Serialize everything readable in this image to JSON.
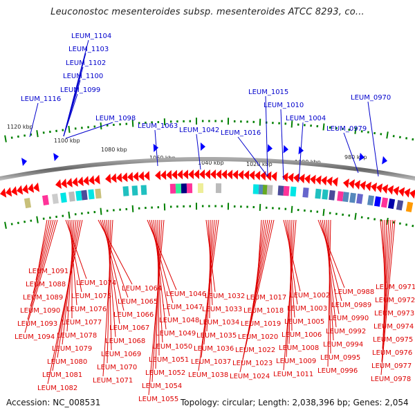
{
  "title": "Leuconostoc mesenteroides subsp. mesenteroides ATCC 8293, co...",
  "footer": {
    "accession": "Accession: NC_008531",
    "topology": "Topology: circular; Length: 2,038,396 bp; Genes: 2,054"
  },
  "colors": {
    "forward_gene": "#0000ff",
    "reverse_gene": "#ff0000",
    "forward_label": "#0000cc",
    "reverse_label": "#dd0000",
    "tick": "#008000",
    "backbone": "#888888"
  },
  "kbp_ticks": [
    "1120 kbp",
    "1100 kbp",
    "1080 kbp",
    "1060 kbp",
    "1040 kbp",
    "1020 kbp",
    "1000 kbp",
    "980 kbp"
  ],
  "forward_labels": [
    "LEUM_1104",
    "LEUM_1103",
    "LEUM_1102",
    "LEUM_1100",
    "LEUM_1099",
    "LEUM_1116",
    "LEUM_1098",
    "LEUM_1063",
    "LEUM_1042",
    "LEUM_1016",
    "LEUM_1015",
    "LEUM_1010",
    "LEUM_1004",
    "LEUM_0979",
    "LEUM_0970"
  ],
  "reverse_labels": [
    "LEUM_1091",
    "LEUM_1088",
    "LEUM_1089",
    "LEUM_1090",
    "LEUM_1093",
    "LEUM_1094",
    "LEUM_1074",
    "LEUM_1075",
    "LEUM_1076",
    "LEUM_1077",
    "LEUM_1078",
    "LEUM_1079",
    "LEUM_1080",
    "LEUM_1081",
    "LEUM_1082",
    "LEUM_1064",
    "LEUM_1065",
    "LEUM_1066",
    "LEUM_1067",
    "LEUM_1068",
    "LEUM_1069",
    "LEUM_1070",
    "LEUM_1071",
    "LEUM_1046",
    "LEUM_1047",
    "LEUM_1048",
    "LEUM_1049",
    "LEUM_1050",
    "LEUM_1051",
    "LEUM_1052",
    "LEUM_1054",
    "LEUM_1055",
    "LEUM_1032",
    "LEUM_1033",
    "LEUM_1034",
    "LEUM_1035",
    "LEUM_1036",
    "LEUM_1037",
    "LEUM_1038",
    "LEUM_1017",
    "LEUM_1018",
    "LEUM_1019",
    "LEUM_1020",
    "LEUM_1022",
    "LEUM_1023",
    "LEUM_1024",
    "LEUM_1002",
    "LEUM_1003",
    "LEUM_1005",
    "LEUM_1006",
    "LEUM_1008",
    "LEUM_1009",
    "LEUM_1011",
    "LEUM_0988",
    "LEUM_0989",
    "LEUM_0990",
    "LEUM_0992",
    "LEUM_0994",
    "LEUM_0995",
    "LEUM_0996",
    "LEUM_0971",
    "LEUM_0972",
    "LEUM_0973",
    "LEUM_0974",
    "LEUM_0975",
    "LEUM_0976",
    "LEUM_0977",
    "LEUM_0978"
  ]
}
